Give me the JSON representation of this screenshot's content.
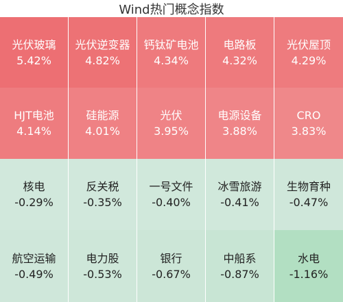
{
  "title": "Wind热门概念指数",
  "chart_data": {
    "type": "heatmap",
    "title": "Wind热门概念指数",
    "rows": 4,
    "cols": 5,
    "cells": [
      {
        "name": "光伏玻璃",
        "value": "5.42%",
        "pct": 5.42,
        "color": "#ed6f73"
      },
      {
        "name": "光伏逆变器",
        "value": "4.82%",
        "pct": 4.82,
        "color": "#ed7275"
      },
      {
        "name": "钙钛矿电池",
        "value": "4.34%",
        "pct": 4.34,
        "color": "#ee7a7d"
      },
      {
        "name": "电路板",
        "value": "4.32%",
        "pct": 4.32,
        "color": "#ee7a7d"
      },
      {
        "name": "光伏屋顶",
        "value": "4.29%",
        "pct": 4.29,
        "color": "#ee7b7e"
      },
      {
        "name": "HJT电池",
        "value": "4.14%",
        "pct": 4.14,
        "color": "#ee7c7f"
      },
      {
        "name": "硅能源",
        "value": "4.01%",
        "pct": 4.01,
        "color": "#ef8184"
      },
      {
        "name": "光伏",
        "value": "3.95%",
        "pct": 3.95,
        "color": "#ef8386"
      },
      {
        "name": "电源设备",
        "value": "3.88%",
        "pct": 3.88,
        "color": "#ef8588"
      },
      {
        "name": "CRO",
        "value": "3.83%",
        "pct": 3.83,
        "color": "#ef888a"
      },
      {
        "name": "核电",
        "value": "-0.29%",
        "pct": -0.29,
        "color": "#d1e8dc"
      },
      {
        "name": "反关税",
        "value": "-0.35%",
        "pct": -0.35,
        "color": "#d1e8dc"
      },
      {
        "name": "一号文件",
        "value": "-0.40%",
        "pct": -0.4,
        "color": "#d0e8db"
      },
      {
        "name": "冰雪旅游",
        "value": "-0.41%",
        "pct": -0.41,
        "color": "#d0e8db"
      },
      {
        "name": "生物育种",
        "value": "-0.47%",
        "pct": -0.47,
        "color": "#cfe7da"
      },
      {
        "name": "航空运输",
        "value": "-0.49%",
        "pct": -0.49,
        "color": "#cfe7da"
      },
      {
        "name": "电力股",
        "value": "-0.53%",
        "pct": -0.53,
        "color": "#cee7d9"
      },
      {
        "name": "银行",
        "value": "-0.67%",
        "pct": -0.67,
        "color": "#cce6d7"
      },
      {
        "name": "中船系",
        "value": "-0.87%",
        "pct": -0.87,
        "color": "#c8e5d4"
      },
      {
        "name": "水电",
        "value": "-1.16%",
        "pct": -1.16,
        "color": "#b2dfc2"
      }
    ]
  }
}
